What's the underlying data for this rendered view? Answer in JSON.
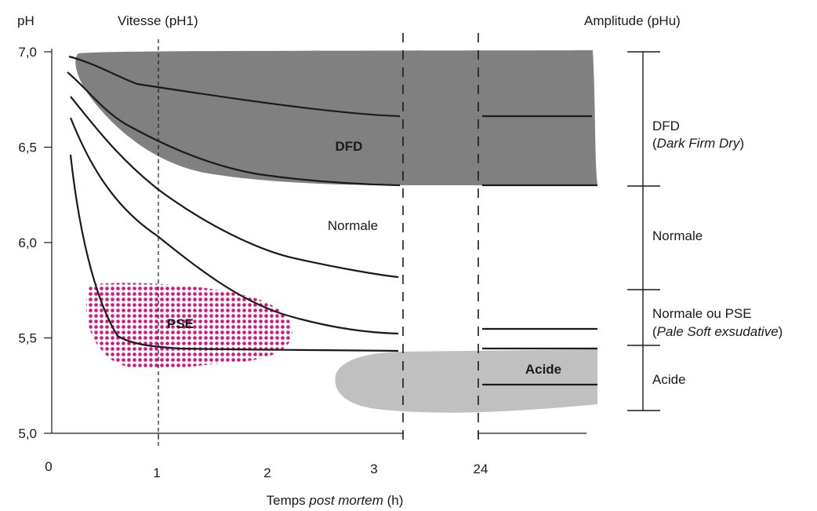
{
  "chart_data": {
    "type": "line",
    "xlabel": {
      "prefix": "Temps ",
      "italic": "post mortem",
      "suffix": " (h)"
    },
    "ylabel": "pH",
    "title_left": "Vitesse (pH1)",
    "title_right": "Amplitude (pHu)",
    "y_ticks": [
      "7,0",
      "6,5",
      "6,0",
      "5,5",
      "5,0"
    ],
    "y_tick_values": [
      7.0,
      6.5,
      6.0,
      5.5,
      5.0
    ],
    "x_ticks": [
      "0",
      "1",
      "2",
      "3",
      "24"
    ],
    "ylim": [
      5.0,
      7.0
    ],
    "regions": {
      "dfd": {
        "label": "DFD",
        "color": "#808080"
      },
      "pse": {
        "label": "PSE",
        "color": "#d4157f"
      },
      "acide": {
        "label": "Acide",
        "color": "#c0c0c0"
      }
    },
    "curve_labels": {
      "normale": "Normale"
    },
    "series": [
      {
        "values_h": [
          [
            0.2,
            6.97
          ],
          [
            0.8,
            6.83
          ],
          [
            2.0,
            6.72
          ],
          [
            3.0,
            6.66
          ]
        ],
        "pHu": 6.66
      },
      {
        "values_h": [
          [
            0.2,
            6.9
          ],
          [
            0.6,
            6.63
          ],
          [
            1.2,
            6.48
          ],
          [
            2.0,
            6.36
          ],
          [
            3.0,
            6.3
          ]
        ],
        "pHu": 6.3
      },
      {
        "values_h": [
          [
            0.2,
            6.77
          ],
          [
            0.6,
            6.47
          ],
          [
            1.0,
            6.28
          ],
          [
            2.0,
            5.98
          ],
          [
            3.0,
            5.82
          ]
        ],
        "pHu": null
      },
      {
        "values_h": [
          [
            0.2,
            6.66
          ],
          [
            0.6,
            6.15
          ],
          [
            1.0,
            5.88
          ],
          [
            1.6,
            5.68
          ],
          [
            2.2,
            5.58
          ],
          [
            3.0,
            5.53
          ]
        ],
        "pHu": 5.55
      },
      {
        "values_h": [
          [
            0.2,
            6.46
          ],
          [
            0.4,
            5.9
          ],
          [
            0.6,
            5.55
          ],
          [
            1.0,
            5.46
          ],
          [
            2.0,
            5.44
          ],
          [
            3.0,
            5.43
          ]
        ],
        "pHu": 5.45
      },
      {
        "values_h": [],
        "pHu": 5.26
      }
    ],
    "amplitude_scale": [
      {
        "label": "DFD",
        "sub_open": "(",
        "sub_italic": "Dark Firm Dry",
        "sub_close": ")",
        "from": 6.3,
        "to": 7.0
      },
      {
        "label": "Normale",
        "from": 5.75,
        "to": 6.3
      },
      {
        "label": "Normale ou PSE",
        "sub_open": "(",
        "sub_italic": "Pale Soft exsudative",
        "sub_close": ")",
        "from": 5.45,
        "to": 5.75
      },
      {
        "label": "Acide",
        "from": 5.1,
        "to": 5.45
      }
    ]
  }
}
